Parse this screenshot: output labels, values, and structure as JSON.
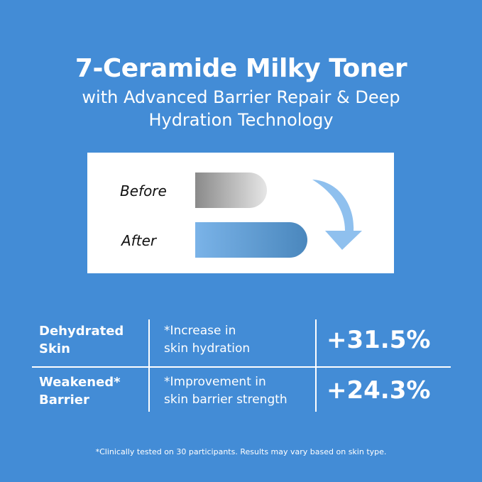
{
  "title": "7-Ceramide Milky Toner",
  "subtitle_lines": [
    "with Advanced Barrier Repair & Deep",
    "Hydration Technology"
  ],
  "comparison": {
    "before_label": "Before",
    "after_label": "After",
    "colors": {
      "before": [
        "#8a8a8a",
        "#e6e6e6"
      ],
      "after": [
        "#7ab3e8",
        "#4a87bd"
      ],
      "arrow": "#8fc0ee"
    }
  },
  "rows": [
    {
      "category": [
        "Dehydrated",
        "Skin"
      ],
      "description": [
        "*Increase in",
        "skin hydration"
      ],
      "value": "+31.5%"
    },
    {
      "category": [
        "Weakened*",
        "Barrier"
      ],
      "description": [
        "*Improvement in",
        "skin barrier strength"
      ],
      "value": "+24.3%"
    }
  ],
  "footnote": "*Clinically tested on 30 participants. Results may vary  based on skin type."
}
